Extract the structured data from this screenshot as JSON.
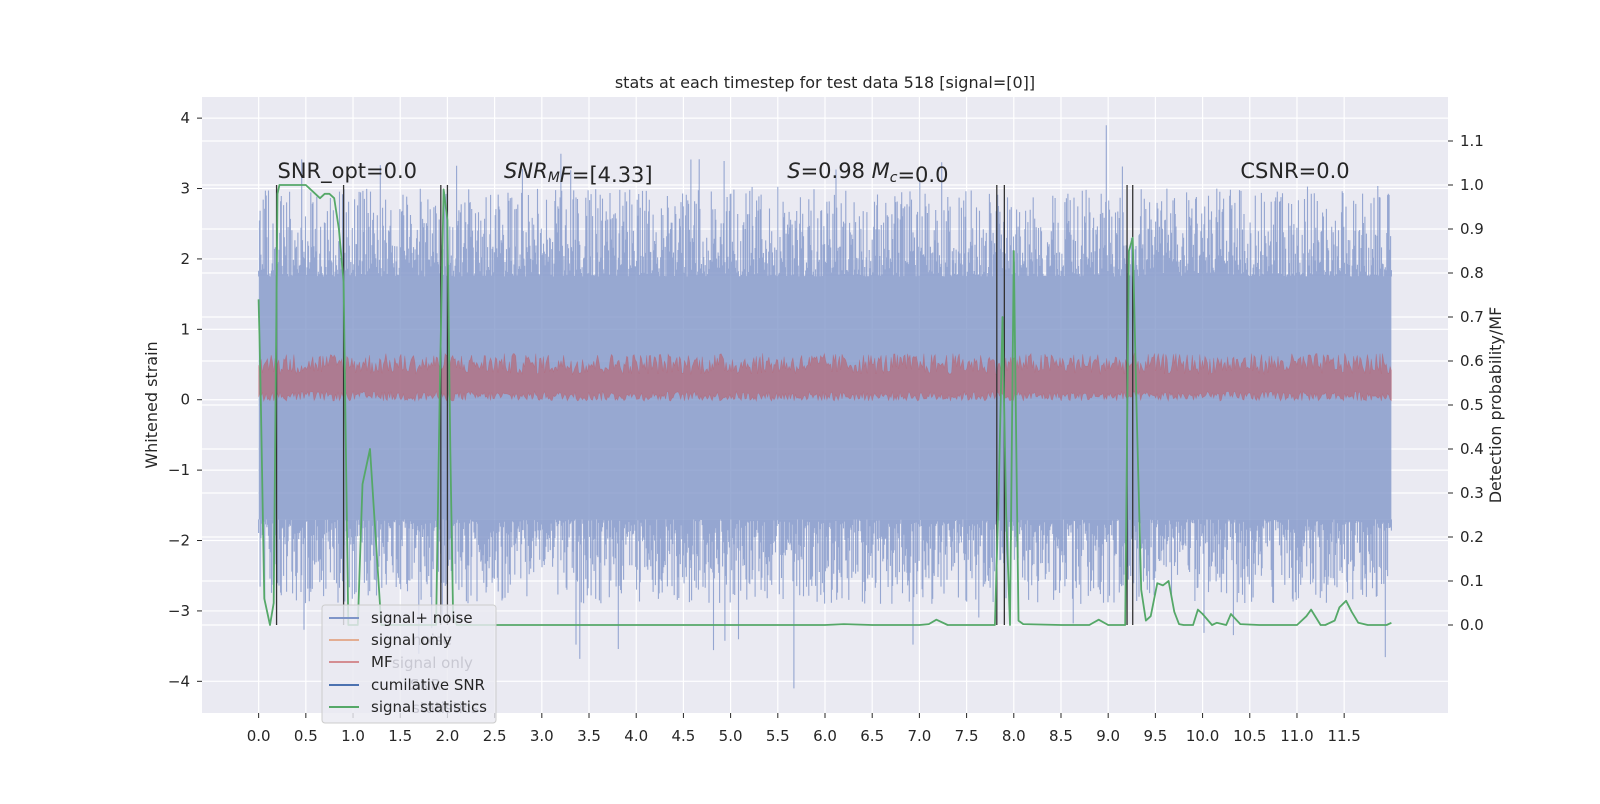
{
  "chart_data": {
    "type": "line",
    "title": "stats at each timestep for test data 518 [signal=[0]]",
    "xlabel": "",
    "ylabel": "Whitened strain",
    "ylabel_right": "Detection probability/MF",
    "xlim": [
      -0.6,
      12.6
    ],
    "ylim": [
      -4.45,
      4.3
    ],
    "ylim_right": [
      -0.2,
      1.2
    ],
    "x_ticks": [
      0.0,
      0.5,
      1.0,
      1.5,
      2.0,
      2.5,
      3.0,
      3.5,
      4.0,
      4.5,
      5.0,
      5.5,
      6.0,
      6.5,
      7.0,
      7.5,
      8.0,
      8.5,
      9.0,
      9.5,
      10.0,
      10.5,
      11.0,
      11.5
    ],
    "x_tick_labels": [
      "0.0",
      "0.5",
      "1.0",
      "1.5",
      "2.0",
      "2.5",
      "3.0",
      "3.5",
      "4.0",
      "4.5",
      "5.0",
      "5.5",
      "6.0",
      "6.5",
      "7.0",
      "7.5",
      "8.0",
      "8.5",
      "9.0",
      "9.5",
      "10.0",
      "10.5",
      "11.0",
      "11.5"
    ],
    "y_ticks": [
      -4,
      -3,
      -2,
      -1,
      0,
      1,
      2,
      3,
      4
    ],
    "y_tick_labels": [
      "−4",
      "−3",
      "−2",
      "−1",
      "0",
      "1",
      "2",
      "3",
      "4"
    ],
    "y_right_ticks": [
      0.0,
      0.1,
      0.2,
      0.3,
      0.4,
      0.5,
      0.6,
      0.7,
      0.8,
      0.9,
      1.0,
      1.1
    ],
    "y_right_tick_labels": [
      "0.0",
      "0.1",
      "0.2",
      "0.3",
      "0.4",
      "0.5",
      "0.6",
      "0.7",
      "0.8",
      "0.9",
      "1.0",
      "1.1"
    ],
    "grid": true,
    "legend_placement": "lower-left",
    "legend": [
      {
        "label": "signal+ noise",
        "color": "#7f95c8"
      },
      {
        "label": "signal only",
        "color": "#dd8452"
      },
      {
        "label": "MF",
        "color": "#c44e52"
      },
      {
        "label": "cumilative SNR",
        "color": "#4c72b0"
      },
      {
        "label": "signal statistics",
        "color": "#55a868"
      }
    ],
    "legend_ghost": [
      "noise",
      "signal only",
      "SNR",
      "statistics"
    ],
    "annotations": [
      {
        "x": 0.2,
        "y": 3.15,
        "parts": [
          {
            "t": "SNR_opt=0.0",
            "i": false
          }
        ]
      },
      {
        "x": 2.6,
        "y": 3.15,
        "parts": [
          {
            "t": "SNR",
            "i": true
          },
          {
            "t": "M",
            "i": true,
            "sub": true
          },
          {
            "t": "F",
            "i": true
          },
          {
            "t": "=[4.33]",
            "i": false
          }
        ]
      },
      {
        "x": 5.6,
        "y": 3.15,
        "parts": [
          {
            "t": "S",
            "i": true
          },
          {
            "t": "=0.98   ",
            "i": false
          },
          {
            "t": "M",
            "i": true
          },
          {
            "t": "c",
            "i": true,
            "sub": true
          },
          {
            "t": "=0.0",
            "i": false
          }
        ]
      },
      {
        "x": 10.4,
        "y": 3.15,
        "parts": [
          {
            "t": "CSNR=0.0",
            "i": false
          }
        ]
      }
    ],
    "noise_envelope": {
      "x_range": [
        0.0,
        12.0
      ],
      "core_range": [
        -1.7,
        1.75
      ],
      "spike_max": 3.9,
      "spike_min": -4.1,
      "color": "#7f95c8"
    },
    "mf_band": {
      "x_range": [
        0.0,
        12.0
      ],
      "range": [
        0.0,
        0.58
      ],
      "color": "#c44e52"
    },
    "marker_lines_x": [
      0.19,
      0.9,
      1.93,
      2.0,
      7.82,
      7.9,
      9.2,
      9.26
    ],
    "marker_lines_color": "#333333",
    "series": [
      {
        "name": "signal statistics",
        "color": "#55a868",
        "axis": "right",
        "x": [
          0.0,
          0.02,
          0.06,
          0.12,
          0.16,
          0.2,
          0.22,
          0.25,
          0.3,
          0.5,
          0.6,
          0.65,
          0.7,
          0.75,
          0.8,
          0.85,
          0.9,
          0.95,
          1.0,
          1.05,
          1.1,
          1.18,
          1.3,
          1.5,
          1.8,
          1.88,
          1.92,
          1.96,
          2.0,
          2.03,
          2.06,
          2.1,
          2.2,
          2.5,
          3.0,
          4.0,
          5.0,
          6.0,
          6.2,
          6.5,
          7.0,
          7.1,
          7.18,
          7.3,
          7.6,
          7.8,
          7.84,
          7.88,
          7.92,
          7.96,
          8.0,
          8.05,
          8.1,
          8.5,
          8.8,
          8.9,
          9.0,
          9.15,
          9.18,
          9.22,
          9.26,
          9.3,
          9.35,
          9.4,
          9.45,
          9.52,
          9.58,
          9.64,
          9.7,
          9.75,
          9.8,
          9.9,
          9.95,
          10.0,
          10.1,
          10.15,
          10.25,
          10.3,
          10.4,
          10.6,
          11.0,
          11.1,
          11.15,
          11.25,
          11.3,
          11.4,
          11.45,
          11.52,
          11.58,
          11.65,
          11.75,
          11.95,
          12.0
        ],
        "y": [
          0.74,
          0.55,
          0.06,
          0.0,
          0.05,
          0.98,
          1.0,
          1.0,
          1.0,
          1.0,
          0.98,
          0.97,
          0.98,
          0.98,
          0.97,
          0.9,
          0.78,
          0.0,
          0.0,
          0.0,
          0.32,
          0.4,
          0.0,
          0.0,
          0.0,
          0.0,
          0.55,
          0.99,
          0.92,
          0.4,
          0.02,
          0.0,
          0.0,
          0.0,
          0.0,
          0.0,
          0.0,
          0.0,
          0.002,
          0.0,
          0.0,
          0.002,
          0.012,
          0.0,
          0.0,
          0.0,
          0.3,
          0.7,
          0.25,
          0.0,
          0.85,
          0.01,
          0.002,
          0.0,
          0.0,
          0.012,
          0.0,
          0.0,
          0.0,
          0.85,
          0.88,
          0.5,
          0.08,
          0.01,
          0.02,
          0.095,
          0.09,
          0.1,
          0.03,
          0.002,
          0.0,
          0.0,
          0.035,
          0.025,
          0.0,
          0.005,
          0.0,
          0.025,
          0.002,
          0.0,
          0.0,
          0.02,
          0.035,
          0.0,
          0.0,
          0.01,
          0.04,
          0.055,
          0.03,
          0.005,
          0.0,
          0.0,
          0.005
        ]
      }
    ]
  }
}
